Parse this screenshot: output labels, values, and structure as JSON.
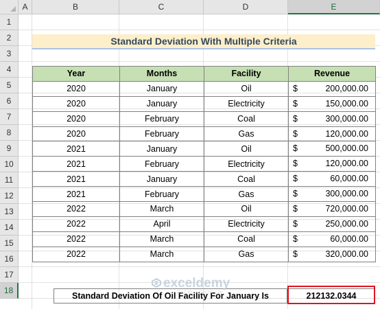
{
  "columns": [
    "A",
    "B",
    "C",
    "D",
    "E"
  ],
  "selected_column": "E",
  "rows": [
    "1",
    "2",
    "3",
    "4",
    "5",
    "6",
    "7",
    "8",
    "9",
    "10",
    "11",
    "12",
    "13",
    "14",
    "15",
    "16",
    "17",
    "18"
  ],
  "selected_row": "18",
  "title": "Standard Deviation With Multiple Criteria",
  "table": {
    "headers": [
      "Year",
      "Months",
      "Facility",
      "Revenue"
    ],
    "rows": [
      [
        "2020",
        "January",
        "Oil",
        "$",
        "200,000.00"
      ],
      [
        "2020",
        "January",
        "Electricity",
        "$",
        "150,000.00"
      ],
      [
        "2020",
        "February",
        "Coal",
        "$",
        "300,000.00"
      ],
      [
        "2020",
        "February",
        "Gas",
        "$",
        "120,000.00"
      ],
      [
        "2021",
        "January",
        "Oil",
        "$",
        "500,000.00"
      ],
      [
        "2021",
        "February",
        "Electricity",
        "$",
        "120,000.00"
      ],
      [
        "2021",
        "January",
        "Coal",
        "$",
        "60,000.00"
      ],
      [
        "2021",
        "February",
        "Gas",
        "$",
        "300,000.00"
      ],
      [
        "2022",
        "March",
        "Oil",
        "$",
        "720,000.00"
      ],
      [
        "2022",
        "April",
        "Electricity",
        "$",
        "250,000.00"
      ],
      [
        "2022",
        "March",
        "Coal",
        "$",
        "60,000.00"
      ],
      [
        "2022",
        "March",
        "Gas",
        "$",
        "320,000.00"
      ]
    ]
  },
  "result": {
    "label": "Standard Deviation Of Oil Facility For January Is",
    "value": "212132.0344"
  },
  "watermark": {
    "name": "exceldemy",
    "tagline": "EXCEL · DATA · BI"
  },
  "colors": {
    "title_fill": "#fdefc9",
    "header_fill": "#c6e0b4",
    "highlight_border": "#e0141e"
  }
}
